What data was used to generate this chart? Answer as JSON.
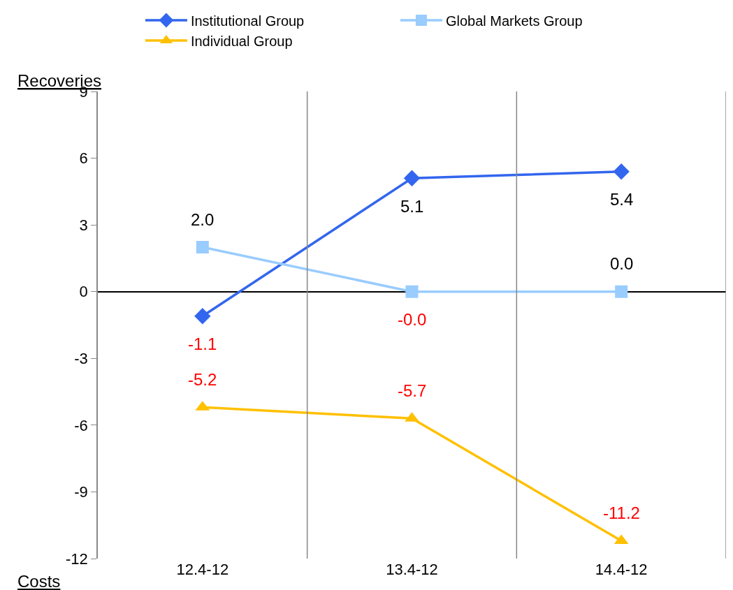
{
  "chart_data": {
    "type": "line",
    "ylabel": "Recoveries",
    "annotations": [
      "Costs"
    ],
    "categories": [
      "12.4-12",
      "13.4-12",
      "14.4-12"
    ],
    "series": [
      {
        "name": "Institutional Group",
        "color": "#3366ee",
        "marker": "diamond",
        "values": [
          -1.1,
          5.1,
          5.4
        ],
        "value_labels": [
          "-1.1",
          "5.1",
          "5.4"
        ]
      },
      {
        "name": "Global Markets Group",
        "color": "#99ccff",
        "marker": "square",
        "values": [
          2.0,
          0.0,
          0.0
        ],
        "value_labels": [
          "2.0",
          "-0.0",
          "0.0"
        ]
      },
      {
        "name": "Individual Group",
        "color": "#ffc000",
        "marker": "triangle",
        "values": [
          -5.2,
          -5.7,
          -11.2
        ],
        "value_labels": [
          "-5.2",
          "-5.7",
          "-11.2"
        ]
      }
    ],
    "ylim": [
      -12,
      9
    ],
    "yticks": [
      -12,
      -9,
      -6,
      -3,
      0,
      3,
      6,
      9
    ],
    "grid": "x",
    "legend": "top"
  }
}
